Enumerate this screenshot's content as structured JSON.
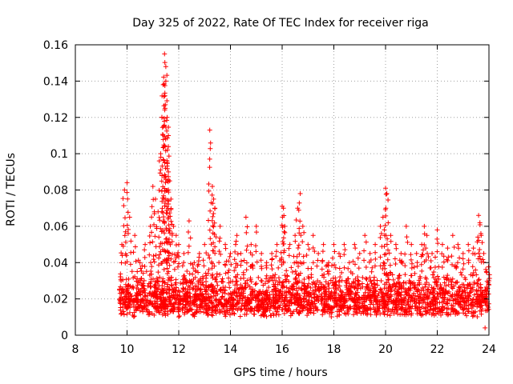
{
  "chart_data": {
    "type": "scatter",
    "title": "Day 325 of 2022, Rate Of TEC Index for receiver riga",
    "xlabel": "GPS time / hours",
    "ylabel": "ROTI / TECUs",
    "xlim": [
      8,
      24
    ],
    "ylim": [
      0,
      0.16
    ],
    "xticks": [
      8,
      10,
      12,
      14,
      16,
      18,
      20,
      22,
      24
    ],
    "xtick_labels": [
      "8",
      "10",
      "12",
      "14",
      "16",
      "18",
      "20",
      "22",
      "24"
    ],
    "yticks": [
      0,
      0.02,
      0.04,
      0.06,
      0.08,
      0.1,
      0.12,
      0.14,
      0.16
    ],
    "ytick_labels": [
      "0",
      "0.02",
      "0.04",
      "0.06",
      "0.08",
      "0.1",
      "0.12",
      "0.14",
      "0.16"
    ],
    "grid": true,
    "marker": "+",
    "color": "#ff0000",
    "series": [
      {
        "name": "ROTI",
        "x": [
          9.8,
          9.9,
          10.0,
          10.1,
          10.3,
          10.5,
          10.7,
          10.9,
          11.0,
          11.1,
          11.2,
          11.3,
          11.35,
          11.4,
          11.45,
          11.5,
          11.5,
          11.55,
          11.6,
          11.6,
          11.65,
          11.7,
          11.8,
          11.9,
          12.0,
          12.2,
          12.4,
          12.6,
          12.8,
          13.0,
          13.2,
          13.3,
          13.35,
          13.4,
          13.6,
          13.8,
          14.0,
          14.2,
          14.25,
          14.4,
          14.6,
          14.8,
          15.0,
          15.2,
          15.4,
          15.6,
          15.8,
          16.0,
          16.05,
          16.1,
          16.3,
          16.5,
          16.6,
          16.7,
          16.8,
          17.0,
          17.2,
          17.4,
          17.6,
          17.8,
          18.0,
          18.2,
          18.4,
          18.6,
          18.8,
          19.0,
          19.2,
          19.4,
          19.6,
          19.8,
          19.9,
          20.0,
          20.05,
          20.2,
          20.4,
          20.6,
          20.8,
          21.0,
          21.2,
          21.4,
          21.5,
          21.6,
          21.8,
          22.0,
          22.2,
          22.4,
          22.6,
          22.8,
          23.0,
          23.2,
          23.4,
          23.6,
          23.65,
          23.7,
          23.8,
          23.9,
          24.0
        ],
        "y": [
          0.05,
          0.08,
          0.084,
          0.065,
          0.055,
          0.04,
          0.05,
          0.06,
          0.082,
          0.075,
          0.068,
          0.1,
          0.12,
          0.138,
          0.155,
          0.148,
          0.14,
          0.12,
          0.11,
          0.09,
          0.085,
          0.075,
          0.06,
          0.055,
          0.05,
          0.045,
          0.063,
          0.04,
          0.045,
          0.05,
          0.113,
          0.082,
          0.075,
          0.07,
          0.06,
          0.05,
          0.045,
          0.05,
          0.055,
          0.045,
          0.065,
          0.05,
          0.06,
          0.045,
          0.04,
          0.045,
          0.05,
          0.071,
          0.07,
          0.06,
          0.05,
          0.055,
          0.07,
          0.078,
          0.06,
          0.05,
          0.055,
          0.045,
          0.05,
          0.04,
          0.05,
          0.045,
          0.05,
          0.04,
          0.05,
          0.045,
          0.055,
          0.045,
          0.05,
          0.06,
          0.065,
          0.081,
          0.078,
          0.055,
          0.05,
          0.045,
          0.06,
          0.05,
          0.045,
          0.05,
          0.06,
          0.055,
          0.045,
          0.058,
          0.05,
          0.048,
          0.055,
          0.05,
          0.045,
          0.05,
          0.048,
          0.066,
          0.062,
          0.055,
          0.045,
          0.035,
          0.03
        ]
      }
    ],
    "dense_band": {
      "x_range": [
        9.7,
        24.0
      ],
      "y_range": [
        0.01,
        0.035
      ],
      "description_points_min": 0.004
    }
  }
}
